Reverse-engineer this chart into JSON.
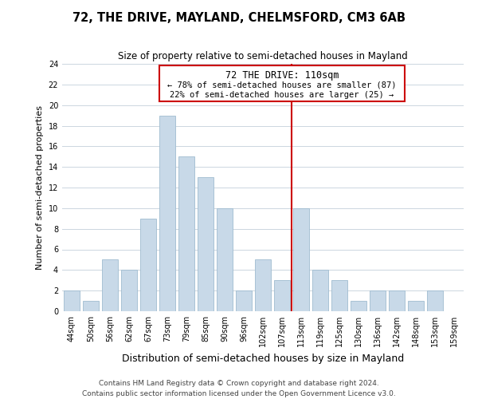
{
  "title": "72, THE DRIVE, MAYLAND, CHELMSFORD, CM3 6AB",
  "subtitle": "Size of property relative to semi-detached houses in Mayland",
  "xlabel": "Distribution of semi-detached houses by size in Mayland",
  "ylabel": "Number of semi-detached properties",
  "categories": [
    "44sqm",
    "50sqm",
    "56sqm",
    "62sqm",
    "67sqm",
    "73sqm",
    "79sqm",
    "85sqm",
    "90sqm",
    "96sqm",
    "102sqm",
    "107sqm",
    "113sqm",
    "119sqm",
    "125sqm",
    "130sqm",
    "136sqm",
    "142sqm",
    "148sqm",
    "153sqm",
    "159sqm"
  ],
  "values": [
    2,
    1,
    5,
    4,
    9,
    19,
    15,
    13,
    10,
    2,
    5,
    3,
    10,
    4,
    3,
    1,
    2,
    2,
    1,
    2,
    0
  ],
  "bar_color": "#c8d9e8",
  "bar_edge_color": "#a0bcd0",
  "highlight_line_color": "#cc0000",
  "annotation_title": "72 THE DRIVE: 110sqm",
  "annotation_line1": "← 78% of semi-detached houses are smaller (87)",
  "annotation_line2": "22% of semi-detached houses are larger (25) →",
  "annotation_box_color": "#ffffff",
  "annotation_box_edge_color": "#cc0000",
  "ylim": [
    0,
    24
  ],
  "yticks": [
    0,
    2,
    4,
    6,
    8,
    10,
    12,
    14,
    16,
    18,
    20,
    22,
    24
  ],
  "footer_line1": "Contains HM Land Registry data © Crown copyright and database right 2024.",
  "footer_line2": "Contains public sector information licensed under the Open Government Licence v3.0.",
  "background_color": "#ffffff",
  "grid_color": "#ccd6e0",
  "title_fontsize": 10.5,
  "subtitle_fontsize": 8.5,
  "ylabel_fontsize": 8,
  "xlabel_fontsize": 9,
  "tick_fontsize": 7,
  "footer_fontsize": 6.5,
  "ann_title_fontsize": 8.5,
  "ann_body_fontsize": 7.5
}
